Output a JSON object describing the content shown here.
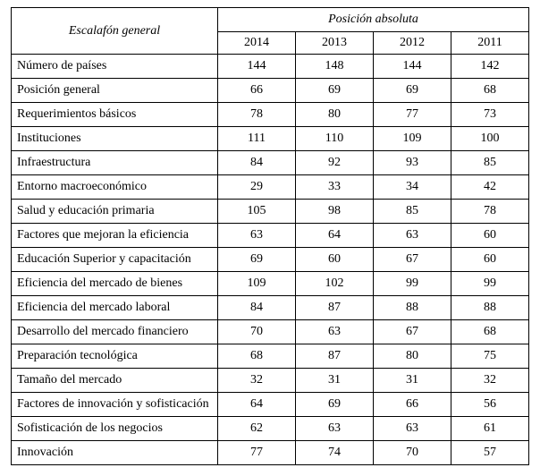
{
  "table": {
    "corner_header": "Escalafón general",
    "group_header": "Posición absoluta",
    "year_headers": [
      "2014",
      "2013",
      "2012",
      "2011"
    ],
    "rows": [
      {
        "label": "Número de países",
        "values": [
          144,
          148,
          144,
          142
        ]
      },
      {
        "label": "Posición general",
        "values": [
          66,
          69,
          69,
          68
        ]
      },
      {
        "label": "Requerimientos básicos",
        "values": [
          78,
          80,
          77,
          73
        ]
      },
      {
        "label": "Instituciones",
        "values": [
          111,
          110,
          109,
          100
        ]
      },
      {
        "label": "Infraestructura",
        "values": [
          84,
          92,
          93,
          85
        ]
      },
      {
        "label": "Entorno macroeconómico",
        "values": [
          29,
          33,
          34,
          42
        ]
      },
      {
        "label": "Salud y educación primaria",
        "values": [
          105,
          98,
          85,
          78
        ]
      },
      {
        "label": "Factores que mejoran la eficiencia",
        "values": [
          63,
          64,
          63,
          60
        ]
      },
      {
        "label": "Educación Superior y capacitación",
        "values": [
          69,
          60,
          67,
          60
        ]
      },
      {
        "label": "Eficiencia del mercado de bienes",
        "values": [
          109,
          102,
          99,
          99
        ]
      },
      {
        "label": "Eficiencia del mercado laboral",
        "values": [
          84,
          87,
          88,
          88
        ]
      },
      {
        "label": "Desarrollo del mercado financiero",
        "values": [
          70,
          63,
          67,
          68
        ]
      },
      {
        "label": "Preparación tecnológica",
        "values": [
          68,
          87,
          80,
          75
        ]
      },
      {
        "label": "Tamaño del mercado",
        "values": [
          32,
          31,
          31,
          32
        ]
      },
      {
        "label": "Factores de innovación y sofisticación",
        "values": [
          64,
          69,
          66,
          56
        ]
      },
      {
        "label": "Sofisticación de los negocios",
        "values": [
          62,
          63,
          63,
          61
        ]
      },
      {
        "label": "Innovación",
        "values": [
          77,
          74,
          70,
          57
        ]
      }
    ]
  },
  "chart_data": {
    "type": "table",
    "title": "Escalafón general — Posición absoluta",
    "columns": [
      "Escalafón general",
      "2014",
      "2013",
      "2012",
      "2011"
    ],
    "rows": [
      [
        "Número de países",
        144,
        148,
        144,
        142
      ],
      [
        "Posición general",
        66,
        69,
        69,
        68
      ],
      [
        "Requerimientos básicos",
        78,
        80,
        77,
        73
      ],
      [
        "Instituciones",
        111,
        110,
        109,
        100
      ],
      [
        "Infraestructura",
        84,
        92,
        93,
        85
      ],
      [
        "Entorno macroeconómico",
        29,
        33,
        34,
        42
      ],
      [
        "Salud y educación primaria",
        105,
        98,
        85,
        78
      ],
      [
        "Factores que mejoran la eficiencia",
        63,
        64,
        63,
        60
      ],
      [
        "Educación Superior y capacitación",
        69,
        60,
        67,
        60
      ],
      [
        "Eficiencia del mercado de bienes",
        109,
        102,
        99,
        99
      ],
      [
        "Eficiencia del mercado laboral",
        84,
        87,
        88,
        88
      ],
      [
        "Desarrollo del mercado financiero",
        70,
        63,
        67,
        68
      ],
      [
        "Preparación tecnológica",
        68,
        87,
        80,
        75
      ],
      [
        "Tamaño del mercado",
        32,
        31,
        31,
        32
      ],
      [
        "Factores de innovación y sofisticación",
        64,
        69,
        66,
        56
      ],
      [
        "Sofisticación de los negocios",
        62,
        63,
        63,
        61
      ],
      [
        "Innovación",
        77,
        74,
        70,
        57
      ]
    ]
  }
}
